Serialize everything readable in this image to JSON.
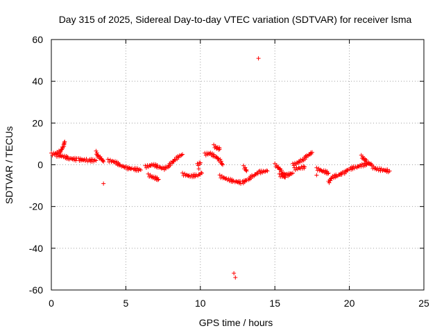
{
  "chart_data": {
    "type": "scatter",
    "title": "Day 315 of 2025, Sidereal Day-to-day VTEC variation (SDTVAR) for receiver lsma",
    "xlabel": "GPS time / hours",
    "ylabel": "SDTVAR / TECUs",
    "xlim": [
      0,
      25
    ],
    "ylim": [
      -60,
      60
    ],
    "x_ticks": [
      0,
      5,
      10,
      15,
      20,
      25
    ],
    "y_ticks": [
      -60,
      -40,
      -20,
      0,
      20,
      40,
      60
    ],
    "x_tick_labels": [
      "0",
      "5",
      "10",
      "15",
      "20",
      "25"
    ],
    "y_tick_labels": [
      "-60",
      "-40",
      "-20",
      "0",
      "20",
      "40",
      "60"
    ],
    "grid": true,
    "marker": "+",
    "series": [
      {
        "name": "SDTVAR",
        "color": "#ff0000",
        "segments": [
          [
            [
              0.0,
              5.0
            ],
            [
              0.3,
              5.5
            ],
            [
              0.6,
              6.5
            ],
            [
              0.8,
              9
            ],
            [
              0.9,
              11
            ]
          ],
          [
            [
              0.3,
              4.5
            ],
            [
              0.8,
              4.0
            ],
            [
              1.2,
              3.0
            ],
            [
              1.8,
              2.5
            ],
            [
              2.5,
              2.2
            ],
            [
              3.0,
              2.0
            ]
          ],
          [
            [
              3.0,
              6.0
            ],
            [
              3.1,
              4.0
            ],
            [
              3.3,
              3.0
            ],
            [
              3.5,
              1.5
            ]
          ],
          [
            [
              3.8,
              2.0
            ],
            [
              4.2,
              1.5
            ],
            [
              4.7,
              -0.5
            ],
            [
              5.0,
              -1.5
            ],
            [
              5.5,
              -2.0
            ],
            [
              6.0,
              -2.5
            ]
          ],
          [
            [
              6.3,
              -1.0
            ],
            [
              6.8,
              0.0
            ],
            [
              7.2,
              -1.0
            ],
            [
              7.5,
              -2.0
            ],
            [
              7.8,
              -1.0
            ],
            [
              8.1,
              1.0
            ],
            [
              8.4,
              3.0
            ],
            [
              8.8,
              5.0
            ]
          ],
          [
            [
              6.5,
              -5.0
            ],
            [
              6.8,
              -6.0
            ],
            [
              7.2,
              -7.0
            ]
          ],
          [
            [
              8.8,
              -4.5
            ],
            [
              9.3,
              -5.5
            ],
            [
              9.8,
              -5.0
            ],
            [
              10.1,
              -4.0
            ]
          ],
          [
            [
              9.8,
              0.0
            ],
            [
              10.0,
              1.0
            ]
          ],
          [
            [
              10.3,
              5.0
            ],
            [
              10.6,
              5.5
            ],
            [
              11.0,
              4.0
            ],
            [
              11.3,
              2.0
            ],
            [
              11.5,
              0.0
            ]
          ],
          [
            [
              10.9,
              9.0
            ],
            [
              11.1,
              8.0
            ],
            [
              11.3,
              7.5
            ]
          ],
          [
            [
              11.3,
              -5.5
            ],
            [
              11.8,
              -7.0
            ],
            [
              12.3,
              -8.0
            ],
            [
              12.8,
              -8.5
            ],
            [
              13.2,
              -7.0
            ],
            [
              13.6,
              -5.0
            ],
            [
              14.0,
              -3.5
            ],
            [
              14.5,
              -3.0
            ]
          ],
          [
            [
              12.9,
              -1.0
            ],
            [
              13.1,
              -3.0
            ]
          ],
          [
            [
              15.0,
              0.0
            ],
            [
              15.3,
              -2.0
            ],
            [
              15.5,
              -4.0
            ],
            [
              15.8,
              -5.0
            ],
            [
              16.2,
              -4.0
            ]
          ],
          [
            [
              15.3,
              -5.0
            ],
            [
              15.7,
              -6.0
            ]
          ],
          [
            [
              16.3,
              -2.0
            ],
            [
              16.7,
              -1.5
            ],
            [
              17.0,
              -1.0
            ]
          ],
          [
            [
              16.2,
              0.0
            ],
            [
              16.8,
              2.0
            ],
            [
              17.2,
              4.5
            ],
            [
              17.5,
              6.0
            ]
          ],
          [
            [
              17.8,
              -2.0
            ],
            [
              18.2,
              -3.0
            ],
            [
              18.6,
              -4.0
            ]
          ],
          [
            [
              18.6,
              -8.5
            ],
            [
              18.8,
              -6.0
            ],
            [
              19.2,
              -5.0
            ],
            [
              19.6,
              -4.0
            ],
            [
              20.0,
              -2.0
            ],
            [
              20.5,
              -1.0
            ],
            [
              21.0,
              0.0
            ],
            [
              21.3,
              0.5
            ]
          ],
          [
            [
              20.8,
              4.0
            ],
            [
              21.0,
              2.5
            ],
            [
              21.2,
              1.0
            ],
            [
              21.5,
              0.0
            ]
          ],
          [
            [
              21.5,
              -1.0
            ],
            [
              21.8,
              -2.0
            ],
            [
              22.2,
              -2.5
            ],
            [
              22.7,
              -3.0
            ]
          ]
        ],
        "points": [
          [
            3.5,
            -9
          ],
          [
            13.9,
            51
          ],
          [
            12.25,
            -52
          ],
          [
            12.35,
            -54
          ],
          [
            17.8,
            -5.0
          ],
          [
            9.9,
            -2.0
          ]
        ]
      }
    ]
  }
}
